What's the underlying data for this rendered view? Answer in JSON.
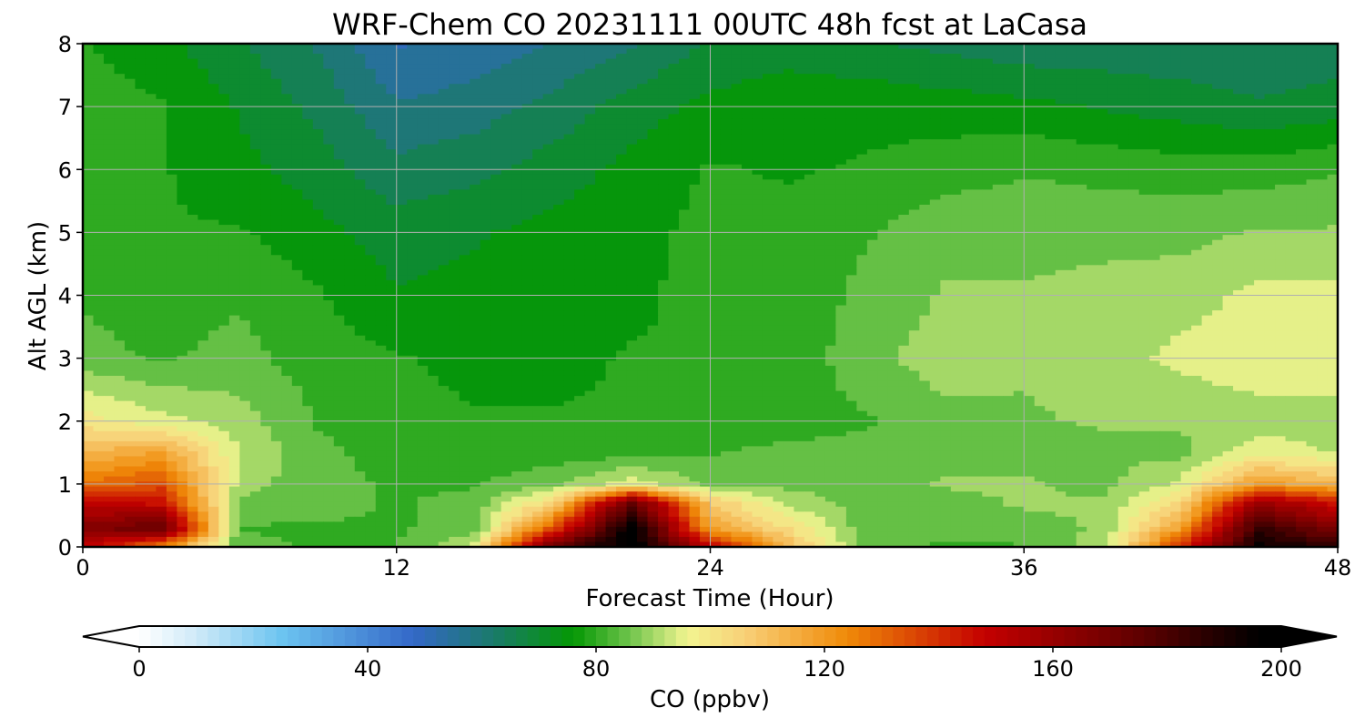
{
  "chart_data": {
    "type": "heatmap",
    "title": "WRF-Chem CO  20231111 00UTC 48h fcst at LaCasa",
    "xlabel": "Forecast Time (Hour)",
    "ylabel": "Alt AGL (km)",
    "xlim": [
      0,
      48
    ],
    "ylim": [
      0,
      8
    ],
    "xticks": [
      0,
      12,
      24,
      36,
      48
    ],
    "yticks": [
      0,
      1,
      2,
      3,
      4,
      5,
      6,
      7,
      8
    ],
    "grid": true,
    "colorbar": {
      "label": "CO  (ppbv)",
      "vmin": 0,
      "vmax": 200,
      "ticks": [
        0,
        40,
        80,
        120,
        160,
        200
      ],
      "extend": "both",
      "stops": [
        {
          "v": 0,
          "c": "#ffffff"
        },
        {
          "v": 10,
          "c": "#cfeaf8"
        },
        {
          "v": 25,
          "c": "#6cc4f0"
        },
        {
          "v": 48,
          "c": "#3468c8"
        },
        {
          "v": 62,
          "c": "#1a7a6a"
        },
        {
          "v": 76,
          "c": "#049804"
        },
        {
          "v": 86,
          "c": "#70c44c"
        },
        {
          "v": 96,
          "c": "#f2f590"
        },
        {
          "v": 106,
          "c": "#f8d078"
        },
        {
          "v": 124,
          "c": "#f08a08"
        },
        {
          "v": 148,
          "c": "#c40000"
        },
        {
          "v": 175,
          "c": "#600000"
        },
        {
          "v": 196,
          "c": "#000000"
        }
      ]
    },
    "x": [
      0,
      3,
      6,
      9,
      12,
      15,
      18,
      21,
      24,
      27,
      30,
      33,
      36,
      39,
      42,
      45,
      48
    ],
    "y": [
      0,
      0.3,
      0.7,
      1,
      1.5,
      2,
      3,
      4,
      5,
      6,
      7,
      8
    ],
    "z": [
      [
        150,
        125,
        84,
        82,
        82,
        95,
        175,
        200,
        150,
        112,
        84,
        82,
        82,
        90,
        140,
        195,
        185
      ],
      [
        165,
        175,
        82,
        82,
        82,
        84,
        135,
        200,
        118,
        102,
        84,
        84,
        86,
        88,
        118,
        185,
        165
      ],
      [
        150,
        145,
        86,
        84,
        82,
        84,
        104,
        175,
        108,
        90,
        86,
        86,
        88,
        88,
        104,
        160,
        145
      ],
      [
        128,
        135,
        90,
        84,
        82,
        82,
        86,
        96,
        86,
        86,
        86,
        88,
        88,
        86,
        94,
        120,
        112
      ],
      [
        112,
        118,
        92,
        84,
        80,
        80,
        80,
        80,
        82,
        84,
        84,
        86,
        86,
        86,
        86,
        96,
        92
      ],
      [
        100,
        94,
        90,
        82,
        79,
        78,
        78,
        78,
        79,
        80,
        82,
        86,
        87,
        88,
        88,
        90,
        90
      ],
      [
        84,
        82,
        84,
        80,
        78,
        76,
        76,
        78,
        78,
        79,
        86,
        90,
        88,
        90,
        94,
        96,
        96
      ],
      [
        82,
        80,
        82,
        78,
        73,
        74,
        76,
        76,
        80,
        79,
        84,
        88,
        88,
        89,
        90,
        94,
        94
      ],
      [
        80,
        78,
        78,
        74,
        70,
        72,
        74,
        76,
        79,
        79,
        82,
        86,
        86,
        86,
        86,
        88,
        88
      ],
      [
        80,
        78,
        74,
        70,
        64,
        66,
        70,
        74,
        78,
        77,
        78,
        80,
        82,
        81,
        80,
        80,
        82
      ],
      [
        80,
        78,
        72,
        66,
        58,
        60,
        64,
        70,
        74,
        76,
        76,
        75,
        74,
        72,
        70,
        68,
        70
      ],
      [
        78,
        74,
        68,
        62,
        52,
        54,
        58,
        62,
        68,
        70,
        68,
        66,
        64,
        64,
        64,
        64,
        64
      ]
    ]
  }
}
